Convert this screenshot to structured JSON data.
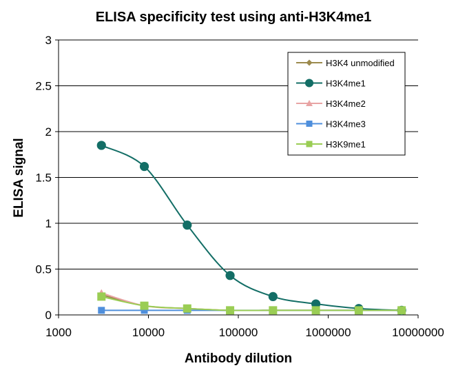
{
  "chart_data": {
    "type": "line",
    "title": "ELISA specificity test using anti-H3K4me1",
    "xlabel": "Antibody  dilution",
    "ylabel": "ELISA signal",
    "xscale": "log",
    "xlim": [
      1000,
      10000000
    ],
    "ylim": [
      0,
      3
    ],
    "xticks": [
      "1000",
      "10000",
      "100000",
      "1000000",
      "10000000"
    ],
    "yticks": [
      "0",
      "0.5",
      "1",
      "1.5",
      "2",
      "2.5",
      "3"
    ],
    "grid": "horizontal",
    "legend_position": "top-right",
    "x": [
      3000,
      9000,
      27000,
      81000,
      243000,
      729000,
      2187000,
      6561000
    ],
    "series": [
      {
        "name": "H3K4 unmodified",
        "color": "#9c8a4d",
        "marker": "diamond",
        "values": [
          0.22,
          0.1,
          0.07,
          0.05,
          0.05,
          0.05,
          0.05,
          0.05
        ]
      },
      {
        "name": "H3K4me1",
        "color": "#136e66",
        "marker": "circle",
        "values": [
          1.85,
          1.62,
          0.98,
          0.43,
          0.2,
          0.12,
          0.07,
          0.05
        ]
      },
      {
        "name": "H3K4me2",
        "color": "#e8a4a4",
        "marker": "triangle",
        "values": [
          0.24,
          0.1,
          0.07,
          0.05,
          0.05,
          0.05,
          0.05,
          0.05
        ]
      },
      {
        "name": "H3K4me3",
        "color": "#4f8fdc",
        "marker": "square",
        "values": [
          0.05,
          0.05,
          0.05,
          0.05,
          0.05,
          0.05,
          0.05,
          0.05
        ]
      },
      {
        "name": "H3K9me1",
        "color": "#9acd54",
        "marker": "square",
        "values": [
          0.2,
          0.1,
          0.07,
          0.05,
          0.05,
          0.05,
          0.05,
          0.05
        ]
      }
    ]
  }
}
